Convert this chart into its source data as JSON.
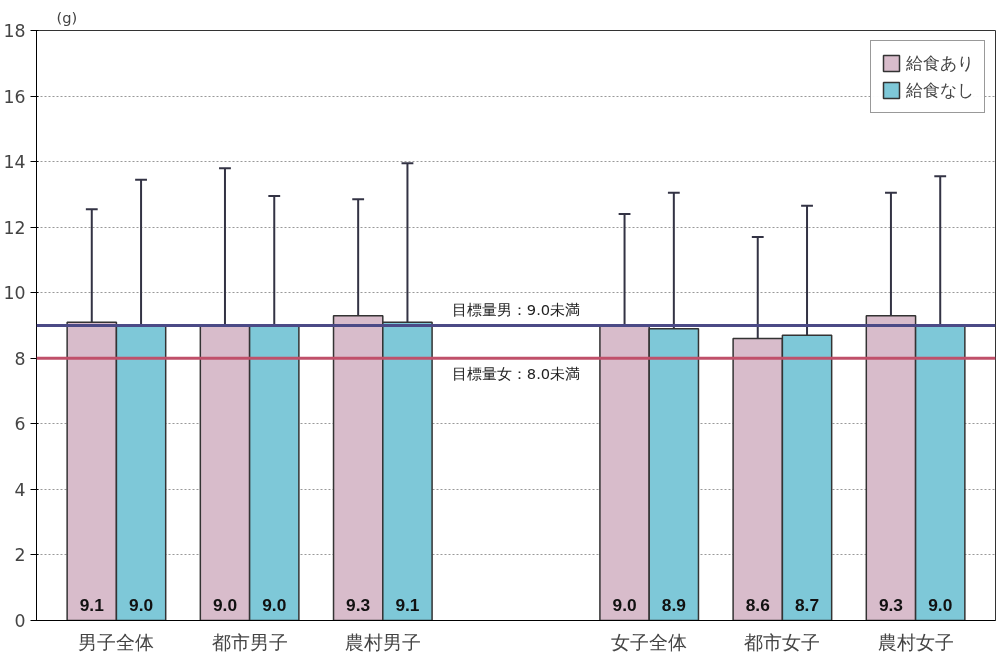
{
  "chart_data": {
    "type": "bar",
    "ylabel": "(g)",
    "categories": [
      "男子全体",
      "都市男子",
      "農村男子",
      null,
      "女子全体",
      "都市女子",
      "農村女子"
    ],
    "series": [
      {
        "name": "給食あり",
        "color": "#d8bccb",
        "values": [
          9.1,
          9.0,
          9.3,
          null,
          9.0,
          8.6,
          9.3
        ],
        "value_labels": [
          "9.1",
          "9.0",
          "9.3",
          null,
          "9.0",
          "8.6",
          "9.3"
        ],
        "errors": [
          [
            9.1,
            12.55
          ],
          [
            9.0,
            13.8
          ],
          [
            9.3,
            12.85
          ],
          null,
          [
            9.0,
            12.4
          ],
          [
            8.6,
            11.7
          ],
          [
            9.3,
            13.05
          ]
        ]
      },
      {
        "name": "給食なし",
        "color": "#7ec8d8",
        "values": [
          9.0,
          9.0,
          9.1,
          null,
          8.9,
          8.7,
          9.0
        ],
        "value_labels": [
          "9.0",
          "9.0",
          "9.1",
          null,
          "8.9",
          "8.7",
          "9.0"
        ],
        "errors": [
          [
            9.0,
            13.45
          ],
          [
            9.0,
            12.95
          ],
          [
            9.1,
            13.95
          ],
          null,
          [
            8.9,
            13.05
          ],
          [
            8.7,
            12.65
          ],
          [
            9.0,
            13.55
          ]
        ]
      }
    ],
    "ylim": [
      0,
      18
    ],
    "yticks": [
      0,
      2,
      4,
      6,
      8,
      10,
      12,
      14,
      16,
      18
    ],
    "grid": "y",
    "legend": "top right",
    "ref_lines": [
      {
        "axis": "y",
        "value": 9.0,
        "label": "目標量男：9.0未満",
        "color": "#4b4a86"
      },
      {
        "axis": "y",
        "value": 8.0,
        "label": "目標量女：8.0未満",
        "color": "#c0506a"
      }
    ]
  }
}
